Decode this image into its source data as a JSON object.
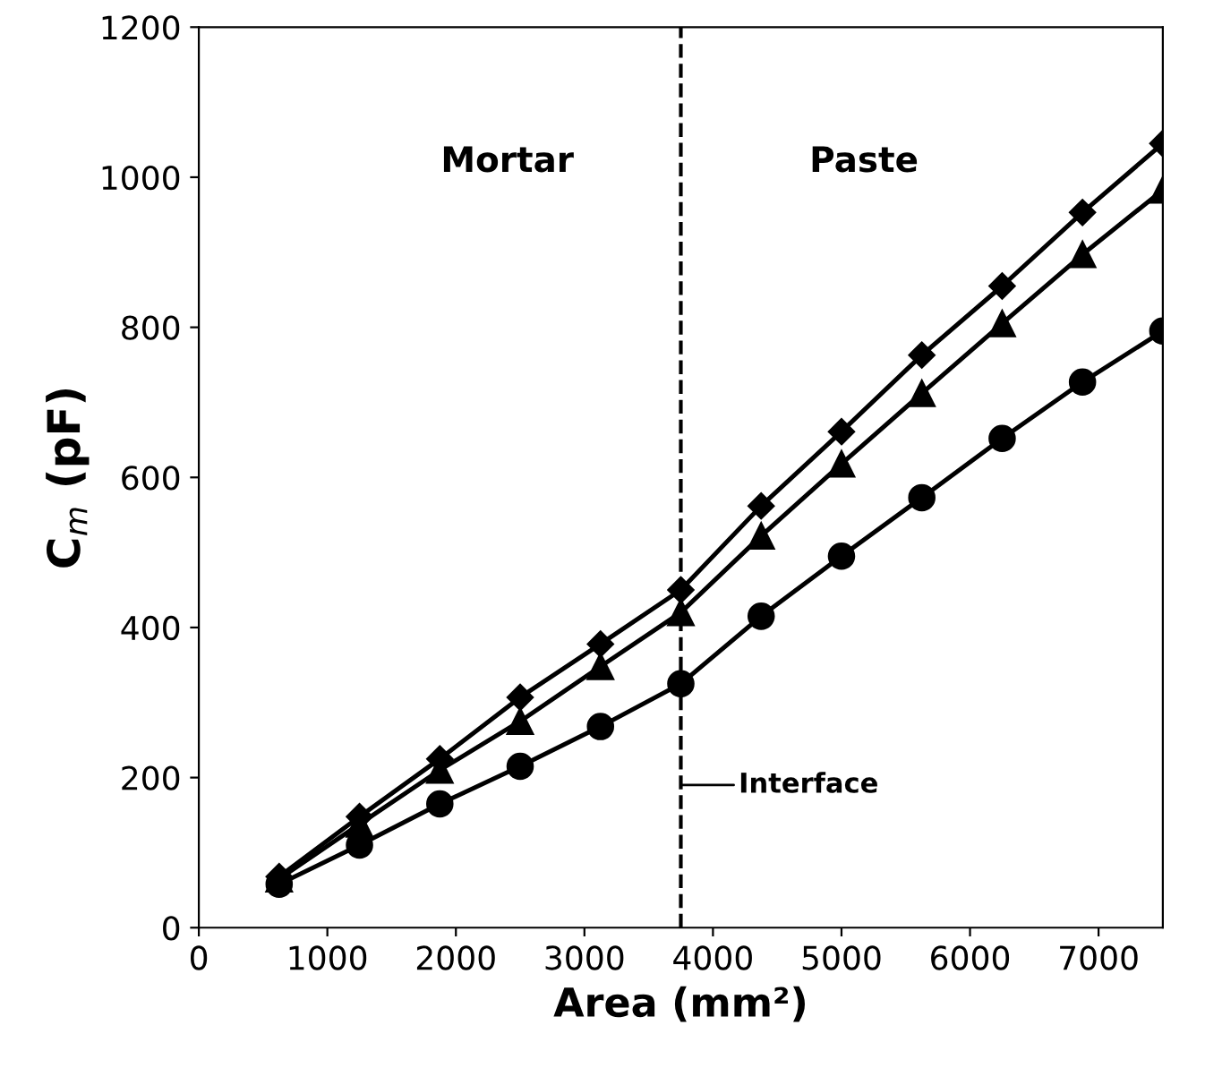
{
  "chart_data": {
    "type": "line",
    "xlabel": "Area (mm²)",
    "ylabel": "C$_{m}$ (pF)",
    "x": [
      625,
      1250,
      1875,
      2500,
      3125,
      3750,
      4375,
      5000,
      5625,
      6250,
      6875,
      7500
    ],
    "series": [
      {
        "color": "#000000",
        "marker": "diamond",
        "values": [
          68,
          148,
          225,
          307,
          378,
          450,
          562,
          661,
          763,
          855,
          953,
          1045
        ]
      },
      {
        "color": "#000000",
        "marker": "triangle",
        "values": [
          65,
          138,
          210,
          275,
          348,
          420,
          522,
          618,
          712,
          805,
          897,
          983
        ]
      },
      {
        "color": "#000000",
        "marker": "circle",
        "values": [
          58,
          110,
          165,
          215,
          268,
          325,
          415,
          495,
          573,
          652,
          727,
          795
        ]
      }
    ],
    "xlim": [
      0,
      7500
    ],
    "xticks": [
      0,
      1000,
      2000,
      3000,
      4000,
      5000,
      6000,
      7000
    ],
    "ylim": [
      0,
      1200
    ],
    "yticks": [
      0,
      200,
      400,
      600,
      800,
      1000,
      1200
    ],
    "ref_lines": [
      {
        "axis": "x",
        "value": 3750,
        "line_style": "dashed",
        "color": "#000000"
      }
    ],
    "annotations": [
      "Mortar",
      "Paste",
      {
        "text": "Interface",
        "x": 3750,
        "y": 190
      }
    ],
    "grid": false,
    "line_style": "solid"
  }
}
